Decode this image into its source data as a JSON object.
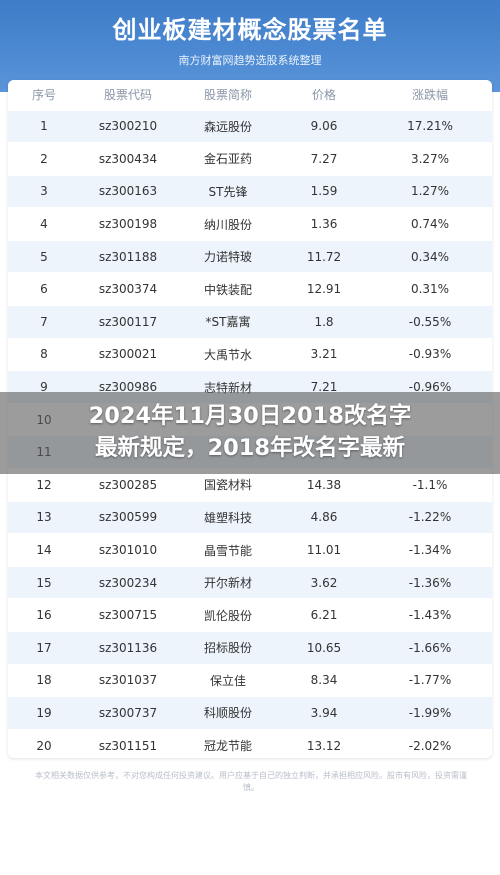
{
  "header": {
    "title": "创业板建材概念股票名单",
    "subtitle": "南方财富网趋势选股系统整理"
  },
  "table": {
    "columns": [
      "序号",
      "股票代码",
      "股票简称",
      "价格",
      "涨跌幅"
    ],
    "rows": [
      [
        "1",
        "sz300210",
        "森远股份",
        "9.06",
        "17.21%"
      ],
      [
        "2",
        "sz300434",
        "金石亚药",
        "7.27",
        "3.27%"
      ],
      [
        "3",
        "sz300163",
        "ST先锋",
        "1.59",
        "1.27%"
      ],
      [
        "4",
        "sz300198",
        "纳川股份",
        "1.36",
        "0.74%"
      ],
      [
        "5",
        "sz301188",
        "力诺特玻",
        "11.72",
        "0.34%"
      ],
      [
        "6",
        "sz300374",
        "中铁装配",
        "12.91",
        "0.31%"
      ],
      [
        "7",
        "sz300117",
        "*ST嘉寓",
        "1.8",
        "-0.55%"
      ],
      [
        "8",
        "sz300021",
        "大禹节水",
        "3.21",
        "-0.93%"
      ],
      [
        "9",
        "sz300986",
        "志特新材",
        "7.21",
        "-0.96%"
      ],
      [
        "10",
        "",
        "",
        "",
        ""
      ],
      [
        "11",
        "",
        "",
        "",
        ""
      ],
      [
        "12",
        "sz300285",
        "国瓷材料",
        "14.38",
        "-1.1%"
      ],
      [
        "13",
        "sz300599",
        "雄塑科技",
        "4.86",
        "-1.22%"
      ],
      [
        "14",
        "sz301010",
        "晶雪节能",
        "11.01",
        "-1.34%"
      ],
      [
        "15",
        "sz300234",
        "开尔新材",
        "3.62",
        "-1.36%"
      ],
      [
        "16",
        "sz300715",
        "凯伦股份",
        "6.21",
        "-1.43%"
      ],
      [
        "17",
        "sz301136",
        "招标股份",
        "10.65",
        "-1.66%"
      ],
      [
        "18",
        "sz301037",
        "保立佳",
        "8.34",
        "-1.77%"
      ],
      [
        "19",
        "sz300737",
        "科顺股份",
        "3.94",
        "-1.99%"
      ],
      [
        "20",
        "sz301151",
        "冠龙节能",
        "13.12",
        "-2.02%"
      ]
    ]
  },
  "footer": {
    "note": "本文相关数据仅供参考，不对您构成任何投资建议。用户应基于自己的独立判断，并承担相应风险。股市有风险，投资需谨慎。"
  },
  "overlay": {
    "line1": "2024年11月30日2018改名字",
    "line2": "最新规定，2018年改名字最新"
  }
}
